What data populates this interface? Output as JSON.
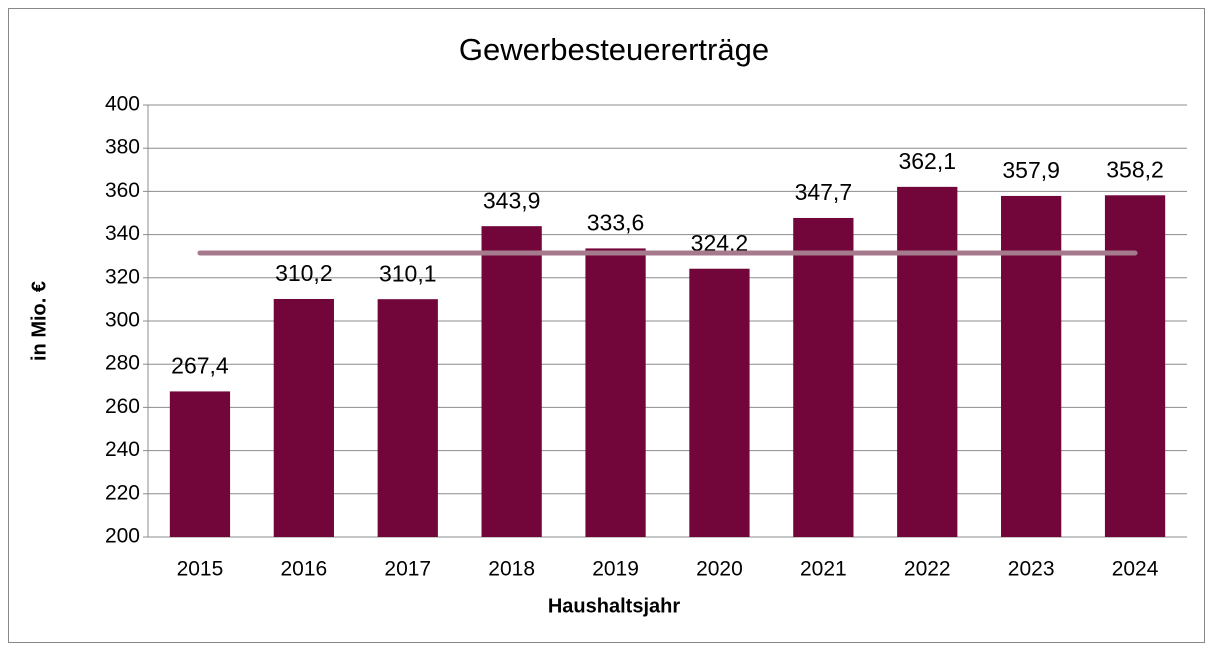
{
  "chart_data": {
    "type": "bar",
    "title": "Gewerbesteuererträge",
    "x_label": "Haushaltsjahr",
    "y_label": "in Mio. €",
    "categories": [
      "2015",
      "2016",
      "2017",
      "2018",
      "2019",
      "2020",
      "2021",
      "2022",
      "2023",
      "2024"
    ],
    "values": [
      267.4,
      310.2,
      310.1,
      343.9,
      333.6,
      324.2,
      347.7,
      362.1,
      357.9,
      358.2
    ],
    "value_labels": [
      "267,4",
      "310,2",
      "310,1",
      "343,9",
      "333,6",
      "324,2",
      "347,7",
      "362,1",
      "357,9",
      "358,2"
    ],
    "color": "#72063a",
    "reference_line": {
      "values": [
        331.5,
        331.5,
        331.5,
        331.5,
        331.5,
        331.5,
        331.5,
        331.5,
        331.5,
        331.5
      ],
      "color": "#a57a8c"
    },
    "ylim": [
      200,
      400
    ],
    "yticks": [
      200,
      220,
      240,
      260,
      280,
      300,
      320,
      340,
      360,
      380,
      400
    ],
    "grid": true
  }
}
